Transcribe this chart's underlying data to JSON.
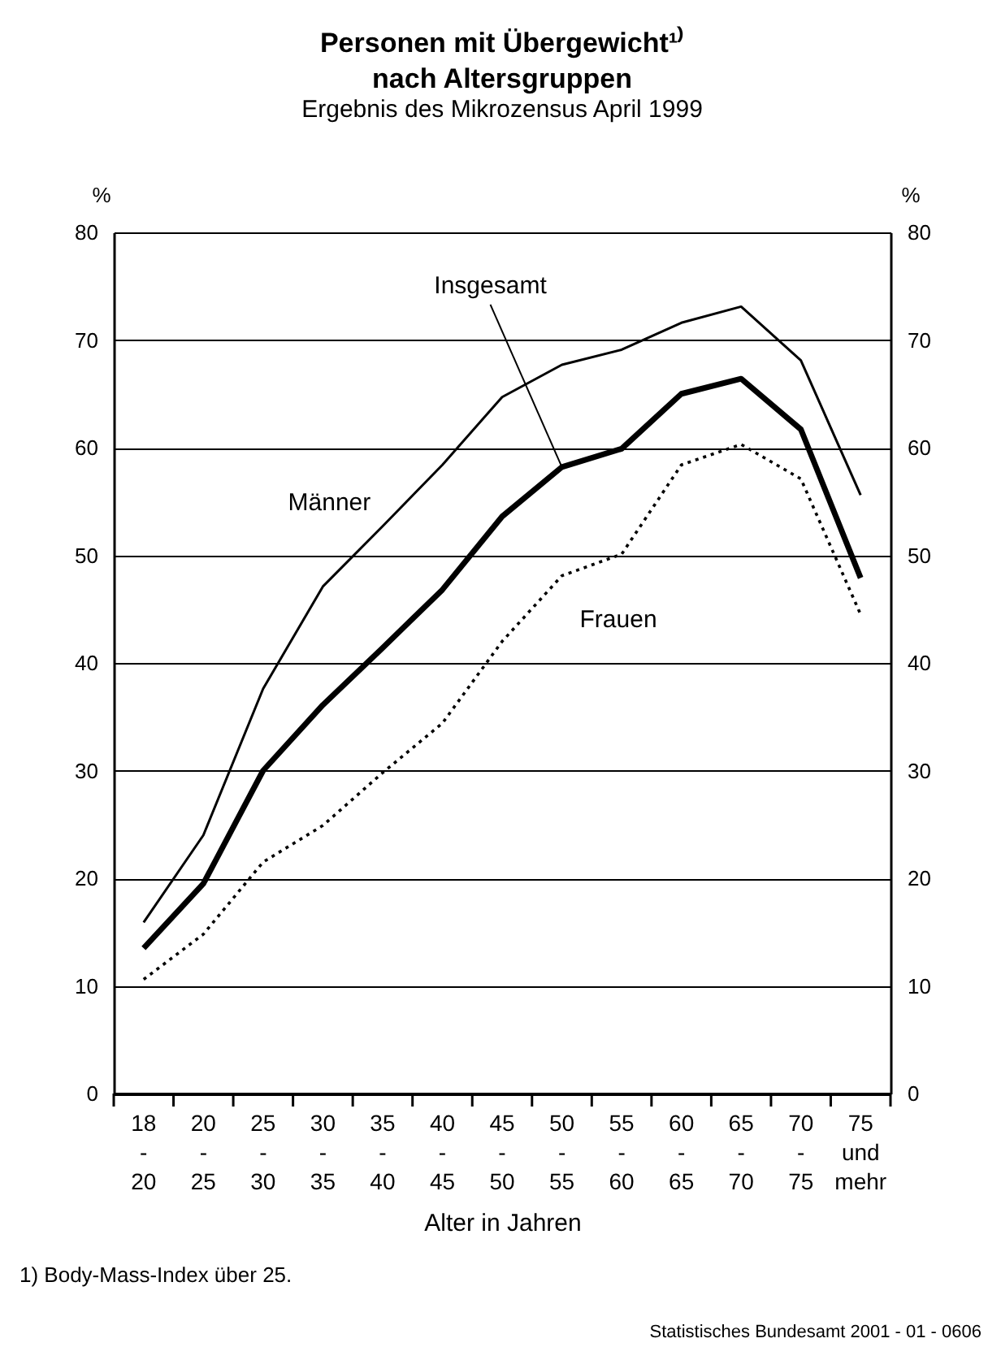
{
  "chart_data": {
    "type": "line",
    "title": "Personen mit Übergewicht¹⁾\nnach Altersgruppen",
    "subtitle": "Ergebnis des Mikrozensus April 1999",
    "xlabel": "Alter in Jahren",
    "ylabel": "%",
    "y2label": "%",
    "categories": [
      "18 - 20",
      "20 - 25",
      "25 - 30",
      "30 - 35",
      "35 - 40",
      "40 - 45",
      "45 - 50",
      "50 - 55",
      "55 - 60",
      "60 - 65",
      "65 - 70",
      "70 - 75",
      "75 und mehr"
    ],
    "series": [
      {
        "name": "Insgesamt",
        "color": "#000000",
        "line_style": "solid",
        "values": [
          13.5,
          19.5,
          30.0,
          36.1,
          41.4,
          46.8,
          53.6,
          58.2,
          59.9,
          65.0,
          66.4,
          61.7,
          47.9
        ]
      },
      {
        "name": "Männer",
        "color": "#000000",
        "line_style": "solid",
        "values": [
          15.9,
          24.0,
          37.6,
          47.1,
          52.7,
          58.4,
          64.7,
          67.7,
          69.1,
          71.6,
          73.1,
          68.1,
          55.6
        ]
      },
      {
        "name": "Frauen",
        "color": "#000000",
        "line_style": "dotted",
        "values": [
          10.6,
          14.8,
          21.5,
          24.9,
          29.8,
          34.4,
          42.0,
          48.1,
          50.1,
          58.4,
          60.3,
          57.1,
          44.5
        ]
      }
    ],
    "ylim": [
      0,
      80
    ],
    "yticks": [
      0,
      10,
      20,
      30,
      40,
      50,
      60,
      70,
      80
    ],
    "y2lim": [
      0,
      80
    ],
    "y2ticks": [
      0,
      10,
      20,
      30,
      40,
      50,
      60,
      70,
      80
    ],
    "grid": "y",
    "legend": false,
    "marker": "none",
    "annotations": [
      "1) Body-Mass-Index über 25.",
      "Statistisches Bundesamt 2001 - 01 - 0606"
    ]
  }
}
